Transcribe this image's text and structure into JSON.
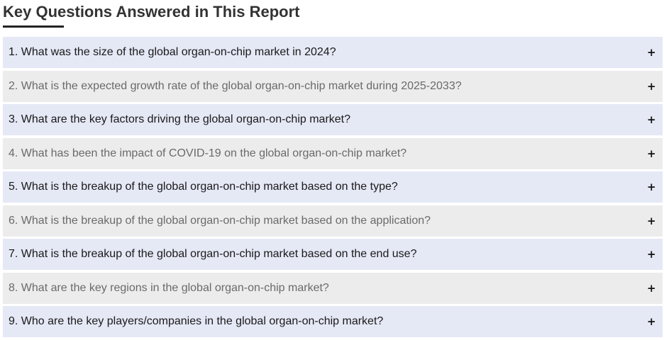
{
  "section": {
    "heading": "Key Questions Answered in This Report"
  },
  "faq": {
    "toggle_symbol": "+",
    "items": [
      {
        "question": "1. What was the size of the global organ-on-chip market in 2024?"
      },
      {
        "question": "2. What is the expected growth rate of the global organ-on-chip market during 2025-2033?"
      },
      {
        "question": "3. What are the key factors driving the global organ-on-chip market?"
      },
      {
        "question": "4. What has been the impact of COVID-19 on the global organ-on-chip market?"
      },
      {
        "question": "5. What is the breakup of the global organ-on-chip market based on the type?"
      },
      {
        "question": "6. What is the breakup of the global organ-on-chip market based on the application?"
      },
      {
        "question": "7. What is the breakup of the global organ-on-chip market based on the end use?"
      },
      {
        "question": "8. What are the key regions in the global organ-on-chip market?"
      },
      {
        "question": "9. Who are the key players/companies in the global organ-on-chip market?"
      }
    ]
  },
  "colors": {
    "row_odd_bg": "#e5e8f5",
    "row_even_bg": "#ececec",
    "heading_text": "#333333",
    "underline": "#222222"
  }
}
